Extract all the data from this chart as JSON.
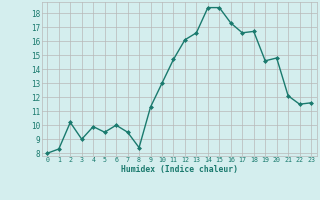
{
  "title": "",
  "x_values": [
    0,
    1,
    2,
    3,
    4,
    5,
    6,
    7,
    8,
    9,
    10,
    11,
    12,
    13,
    14,
    15,
    16,
    17,
    18,
    19,
    20,
    21,
    22,
    23
  ],
  "y_values": [
    8.0,
    8.3,
    10.2,
    9.0,
    9.9,
    9.5,
    10.0,
    9.5,
    8.4,
    11.3,
    13.0,
    14.7,
    16.1,
    16.6,
    18.4,
    18.4,
    17.3,
    16.6,
    16.7,
    14.6,
    14.8,
    12.1,
    11.5,
    11.6
  ],
  "xlabel": "Humidex (Indice chaleur)",
  "ylim_min": 7.8,
  "ylim_max": 18.8,
  "xlim_min": -0.5,
  "xlim_max": 23.5,
  "yticks": [
    8,
    9,
    10,
    11,
    12,
    13,
    14,
    15,
    16,
    17,
    18
  ],
  "xticks": [
    0,
    1,
    2,
    3,
    4,
    5,
    6,
    7,
    8,
    9,
    10,
    11,
    12,
    13,
    14,
    15,
    16,
    17,
    18,
    19,
    20,
    21,
    22,
    23
  ],
  "line_color": "#1a7a6e",
  "marker_color": "#1a7a6e",
  "bg_color": "#d4eeee",
  "grid_color": "#b8b8b8",
  "tick_color": "#1a7a6e",
  "xlabel_color": "#1a7a6e",
  "font_family": "monospace"
}
